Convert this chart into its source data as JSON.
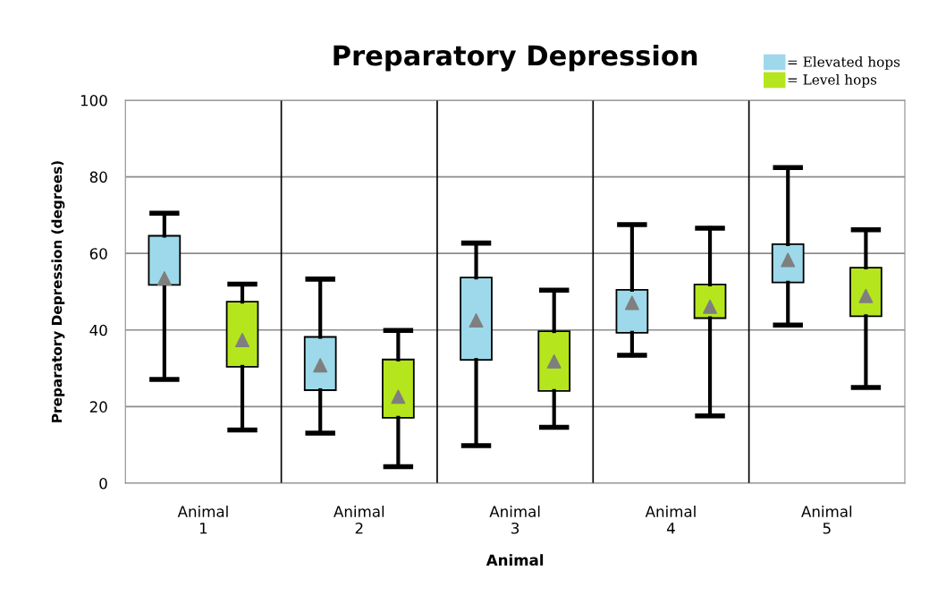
{
  "chart_data": {
    "type": "box",
    "title": "Preparatory Depression",
    "xlabel": "Animal",
    "ylabel": "Preparatory Depression (degrees)",
    "categories": [
      "Animal\n1",
      "Animal\n2",
      "Animal\n3",
      "Animal\n4",
      "Animal\n5"
    ],
    "ylim": [
      0,
      100
    ],
    "yticks": [
      0,
      20,
      40,
      60,
      80,
      100
    ],
    "grid": "y",
    "legend": "top right",
    "marker": "triangle",
    "series": [
      {
        "name": "= Elevated hops",
        "color": "#9dd9ea",
        "boxes": [
          {
            "low": 27.1,
            "q1": 51.8,
            "q3": 64.6,
            "high": 70.5,
            "mean": 53.5
          },
          {
            "low": 13.1,
            "q1": 24.3,
            "q3": 38.2,
            "high": 53.3,
            "mean": 30.8
          },
          {
            "low": 9.8,
            "q1": 32.2,
            "q3": 53.7,
            "high": 62.7,
            "mean": 42.5
          },
          {
            "low": 33.4,
            "q1": 39.3,
            "q3": 50.5,
            "high": 67.5,
            "mean": 47.1
          },
          {
            "low": 41.3,
            "q1": 52.4,
            "q3": 62.4,
            "high": 82.4,
            "mean": 58.3
          }
        ]
      },
      {
        "name": "= Level hops",
        "color": "#b5e61d",
        "boxes": [
          {
            "low": 13.9,
            "q1": 30.4,
            "q3": 47.4,
            "high": 52.0,
            "mean": 37.4
          },
          {
            "low": 4.3,
            "q1": 17.1,
            "q3": 32.3,
            "high": 39.9,
            "mean": 22.6
          },
          {
            "low": 14.6,
            "q1": 24.1,
            "q3": 39.7,
            "high": 50.4,
            "mean": 31.8
          },
          {
            "low": 17.6,
            "q1": 43.1,
            "q3": 51.9,
            "high": 66.6,
            "mean": 46.1
          },
          {
            "low": 25.0,
            "q1": 43.6,
            "q3": 56.3,
            "high": 66.2,
            "mean": 48.9
          }
        ]
      }
    ]
  }
}
